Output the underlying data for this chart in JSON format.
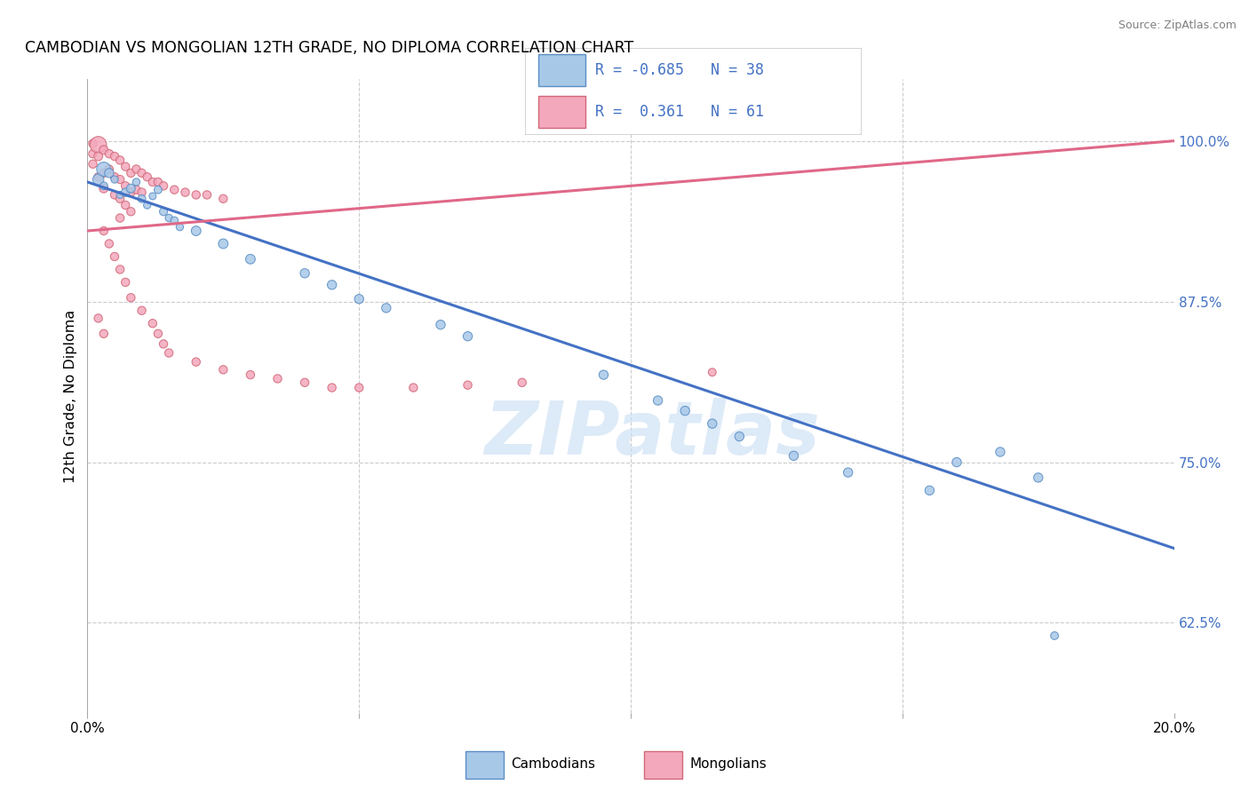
{
  "title": "CAMBODIAN VS MONGOLIAN 12TH GRADE, NO DIPLOMA CORRELATION CHART",
  "source": "Source: ZipAtlas.com",
  "ylabel": "12th Grade, No Diploma",
  "yticks": [
    0.625,
    0.75,
    0.875,
    1.0
  ],
  "ytick_labels": [
    "62.5%",
    "75.0%",
    "87.5%",
    "100.0%"
  ],
  "xmin": 0.0,
  "xmax": 0.2,
  "ymin": 0.555,
  "ymax": 1.048,
  "cambodian_color": "#a8c8e8",
  "mongolian_color": "#f4a8bc",
  "cambodian_edge_color": "#5b8fc4",
  "mongolian_edge_color": "#d06878",
  "cambodian_line_color": "#4472c4",
  "mongolian_line_color": "#e06888",
  "text_color": "#4472c4",
  "grid_color": "#cccccc",
  "watermark_color": "#cce0f5",
  "watermark_text": "ZIPatlas",
  "legend_label_cambodian": "Cambodians",
  "legend_label_mongolian": "Mongolians",
  "R_cambodian": -0.685,
  "N_cambodian": 38,
  "R_mongolian": 0.361,
  "N_mongolian": 61,
  "camb_line_x0": 0.0,
  "camb_line_y0": 0.968,
  "camb_line_x1": 0.2,
  "camb_line_y1": 0.683,
  "mong_line_x0": 0.0,
  "mong_line_y0": 0.93,
  "mong_line_x1": 0.2,
  "mong_line_y1": 1.0,
  "cambodian_points": [
    [
      0.002,
      0.97,
      80
    ],
    [
      0.003,
      0.978,
      130
    ],
    [
      0.003,
      0.965,
      40
    ],
    [
      0.004,
      0.975,
      55
    ],
    [
      0.005,
      0.97,
      35
    ],
    [
      0.006,
      0.958,
      32
    ],
    [
      0.007,
      0.96,
      45
    ],
    [
      0.008,
      0.963,
      50
    ],
    [
      0.009,
      0.968,
      35
    ],
    [
      0.01,
      0.955,
      40
    ],
    [
      0.011,
      0.95,
      35
    ],
    [
      0.012,
      0.957,
      32
    ],
    [
      0.013,
      0.962,
      40
    ],
    [
      0.014,
      0.945,
      42
    ],
    [
      0.015,
      0.94,
      36
    ],
    [
      0.016,
      0.938,
      38
    ],
    [
      0.017,
      0.933,
      35
    ],
    [
      0.02,
      0.93,
      60
    ],
    [
      0.025,
      0.92,
      60
    ],
    [
      0.03,
      0.908,
      60
    ],
    [
      0.04,
      0.897,
      55
    ],
    [
      0.045,
      0.888,
      55
    ],
    [
      0.05,
      0.877,
      55
    ],
    [
      0.055,
      0.87,
      55
    ],
    [
      0.065,
      0.857,
      55
    ],
    [
      0.07,
      0.848,
      55
    ],
    [
      0.095,
      0.818,
      55
    ],
    [
      0.105,
      0.798,
      55
    ],
    [
      0.11,
      0.79,
      55
    ],
    [
      0.115,
      0.78,
      55
    ],
    [
      0.12,
      0.77,
      55
    ],
    [
      0.13,
      0.755,
      55
    ],
    [
      0.14,
      0.742,
      55
    ],
    [
      0.155,
      0.728,
      55
    ],
    [
      0.16,
      0.75,
      55
    ],
    [
      0.168,
      0.758,
      55
    ],
    [
      0.175,
      0.738,
      55
    ],
    [
      0.178,
      0.615,
      40
    ]
  ],
  "mongolian_points": [
    [
      0.001,
      0.998,
      45
    ],
    [
      0.001,
      0.99,
      45
    ],
    [
      0.001,
      0.982,
      45
    ],
    [
      0.002,
      0.997,
      180
    ],
    [
      0.002,
      0.988,
      50
    ],
    [
      0.002,
      0.972,
      45
    ],
    [
      0.003,
      0.993,
      50
    ],
    [
      0.003,
      0.975,
      45
    ],
    [
      0.003,
      0.963,
      50
    ],
    [
      0.004,
      0.99,
      45
    ],
    [
      0.004,
      0.978,
      45
    ],
    [
      0.005,
      0.988,
      45
    ],
    [
      0.005,
      0.972,
      45
    ],
    [
      0.005,
      0.958,
      45
    ],
    [
      0.006,
      0.985,
      45
    ],
    [
      0.006,
      0.97,
      45
    ],
    [
      0.006,
      0.955,
      45
    ],
    [
      0.006,
      0.94,
      45
    ],
    [
      0.007,
      0.98,
      45
    ],
    [
      0.007,
      0.965,
      45
    ],
    [
      0.007,
      0.95,
      45
    ],
    [
      0.008,
      0.975,
      45
    ],
    [
      0.008,
      0.96,
      45
    ],
    [
      0.008,
      0.945,
      45
    ],
    [
      0.009,
      0.978,
      45
    ],
    [
      0.009,
      0.962,
      45
    ],
    [
      0.01,
      0.975,
      45
    ],
    [
      0.01,
      0.96,
      45
    ],
    [
      0.011,
      0.972,
      45
    ],
    [
      0.012,
      0.968,
      45
    ],
    [
      0.013,
      0.968,
      45
    ],
    [
      0.014,
      0.965,
      45
    ],
    [
      0.016,
      0.962,
      45
    ],
    [
      0.018,
      0.96,
      45
    ],
    [
      0.02,
      0.958,
      45
    ],
    [
      0.022,
      0.958,
      45
    ],
    [
      0.025,
      0.955,
      45
    ],
    [
      0.003,
      0.93,
      45
    ],
    [
      0.004,
      0.92,
      45
    ],
    [
      0.005,
      0.91,
      45
    ],
    [
      0.006,
      0.9,
      45
    ],
    [
      0.007,
      0.89,
      45
    ],
    [
      0.008,
      0.878,
      45
    ],
    [
      0.01,
      0.868,
      45
    ],
    [
      0.012,
      0.858,
      45
    ],
    [
      0.013,
      0.85,
      45
    ],
    [
      0.014,
      0.842,
      45
    ],
    [
      0.015,
      0.835,
      45
    ],
    [
      0.02,
      0.828,
      45
    ],
    [
      0.025,
      0.822,
      45
    ],
    [
      0.03,
      0.818,
      45
    ],
    [
      0.035,
      0.815,
      45
    ],
    [
      0.04,
      0.812,
      45
    ],
    [
      0.045,
      0.808,
      45
    ],
    [
      0.05,
      0.808,
      45
    ],
    [
      0.06,
      0.808,
      45
    ],
    [
      0.07,
      0.81,
      45
    ],
    [
      0.08,
      0.812,
      45
    ],
    [
      0.002,
      0.862,
      45
    ],
    [
      0.003,
      0.85,
      45
    ],
    [
      0.115,
      0.82,
      40
    ]
  ]
}
